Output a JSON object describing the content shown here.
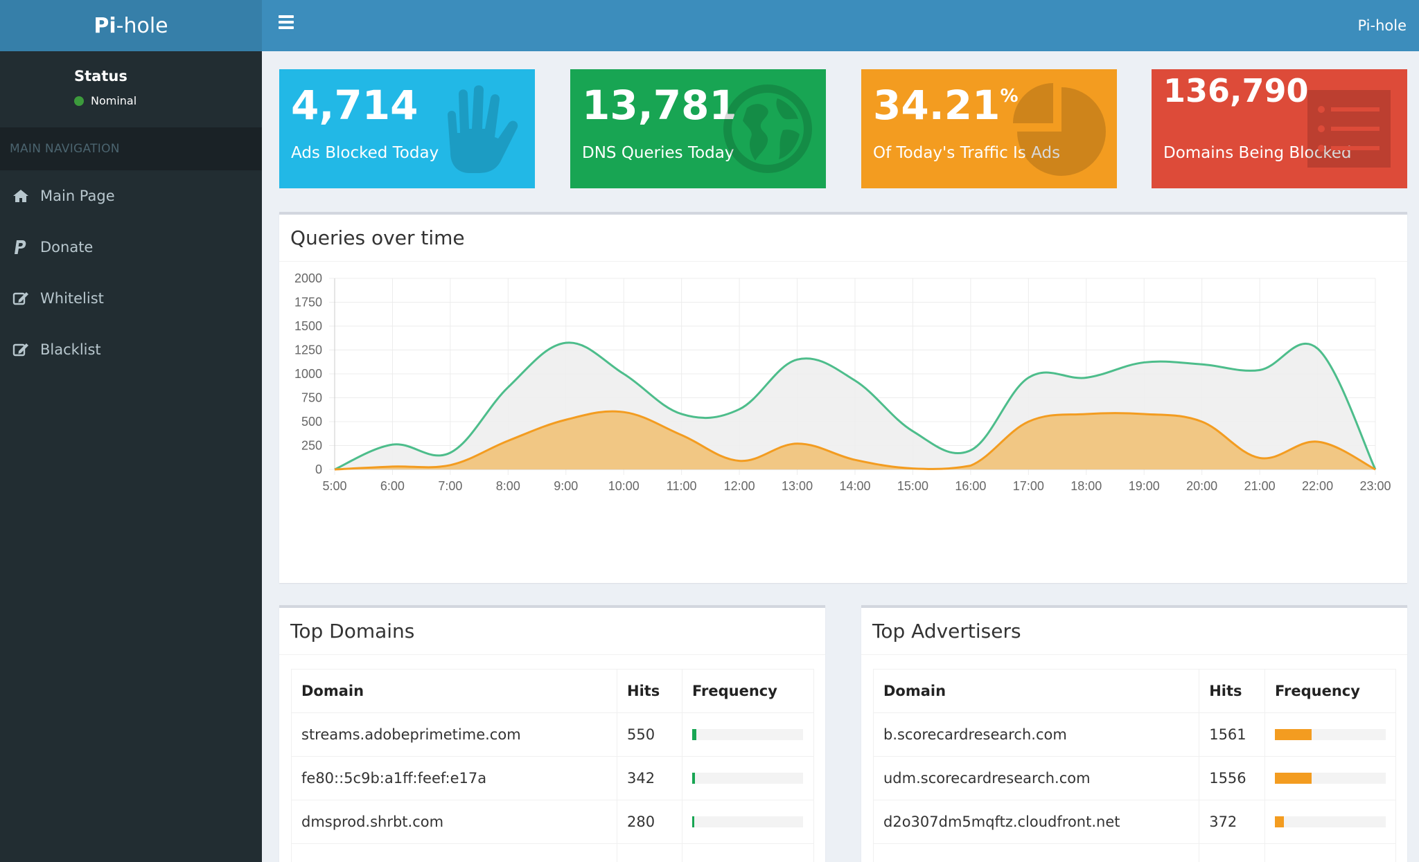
{
  "brand": {
    "bold": "Pi",
    "rest": "-hole"
  },
  "header": {
    "right_label": "Pi-hole"
  },
  "sidebar": {
    "status_title": "Status",
    "status_text": "Nominal",
    "nav_header": "MAIN NAVIGATION",
    "items": [
      {
        "label": "Main Page",
        "icon": "home-icon"
      },
      {
        "label": "Donate",
        "icon": "paypal-icon"
      },
      {
        "label": "Whitelist",
        "icon": "edit-icon"
      },
      {
        "label": "Blacklist",
        "icon": "edit-icon"
      }
    ]
  },
  "boxes": [
    {
      "value": "4,714",
      "label": "Ads Blocked Today",
      "icon": "hand-icon",
      "color": "#22b8e6"
    },
    {
      "value": "13,781",
      "label": "DNS Queries Today",
      "icon": "globe-icon",
      "color": "#18a553"
    },
    {
      "value": "34.21",
      "suffix": "%",
      "label": "Of Today's Traffic Is Ads",
      "icon": "pie-chart-icon",
      "color": "#f39c20"
    },
    {
      "value": "136,790",
      "label": "Domains Being Blocked",
      "icon": "list-icon",
      "color": "#dd4b39"
    }
  ],
  "chart_panel": {
    "title": "Queries over time"
  },
  "chart_data": {
    "type": "area",
    "x": [
      "5:00",
      "6:00",
      "7:00",
      "8:00",
      "9:00",
      "10:00",
      "11:00",
      "12:00",
      "13:00",
      "14:00",
      "15:00",
      "16:00",
      "17:00",
      "18:00",
      "19:00",
      "20:00",
      "21:00",
      "22:00",
      "23:00"
    ],
    "ylim": [
      0,
      2000
    ],
    "yticks": [
      0,
      250,
      500,
      750,
      1000,
      1250,
      1500,
      1750,
      2000
    ],
    "grid": true,
    "series": [
      {
        "color": "#4dbd8b",
        "fill": "#eeeeee",
        "values": [
          0,
          260,
          175,
          860,
          1325,
          1000,
          580,
          630,
          1150,
          930,
          400,
          200,
          960,
          960,
          1120,
          1100,
          1040,
          1265,
          0
        ]
      },
      {
        "color": "#f39c20",
        "fill": "#f0c47d",
        "values": [
          0,
          30,
          45,
          300,
          520,
          600,
          360,
          90,
          270,
          100,
          10,
          40,
          500,
          580,
          580,
          500,
          120,
          290,
          0
        ]
      }
    ]
  },
  "top_domains": {
    "title": "Top Domains",
    "columns": [
      "Domain",
      "Hits",
      "Frequency"
    ],
    "bar_color": "#18a553",
    "rows": [
      {
        "domain": "streams.adobeprimetime.com",
        "hits": "550",
        "freq": 0.04
      },
      {
        "domain": "fe80::5c9b:a1ff:feef:e17a",
        "hits": "342",
        "freq": 0.025
      },
      {
        "domain": "dmsprod.shrbt.com",
        "hits": "280",
        "freq": 0.02
      }
    ]
  },
  "top_advertisers": {
    "title": "Top Advertisers",
    "columns": [
      "Domain",
      "Hits",
      "Frequency"
    ],
    "bar_color": "#f39c20",
    "rows": [
      {
        "domain": "b.scorecardresearch.com",
        "hits": "1561",
        "freq": 0.33
      },
      {
        "domain": "udm.scorecardresearch.com",
        "hits": "1556",
        "freq": 0.33
      },
      {
        "domain": "d2o307dm5mqftz.cloudfront.net",
        "hits": "372",
        "freq": 0.08
      }
    ]
  }
}
